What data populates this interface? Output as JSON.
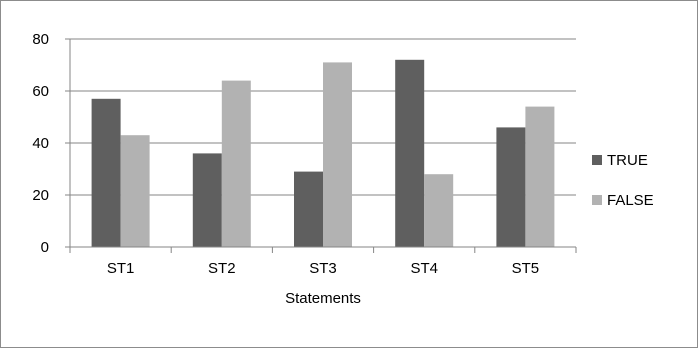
{
  "colors": {
    "true_series": "#5f5f5f",
    "false_series": "#b2b2b2",
    "gridline": "#868686",
    "axis": "#868686"
  },
  "chart_data": {
    "type": "bar",
    "categories": [
      "ST1",
      "ST2",
      "ST3",
      "ST4",
      "ST5"
    ],
    "series": [
      {
        "name": "TRUE",
        "values": [
          57,
          36,
          29,
          72,
          46
        ]
      },
      {
        "name": "FALSE",
        "values": [
          43,
          64,
          71,
          28,
          54
        ]
      }
    ],
    "xlabel": "Statements",
    "ylabel": "",
    "ylim": [
      0,
      80
    ],
    "yticks": [
      0,
      20,
      40,
      60,
      80
    ],
    "grid": true,
    "legend_position": "right"
  }
}
